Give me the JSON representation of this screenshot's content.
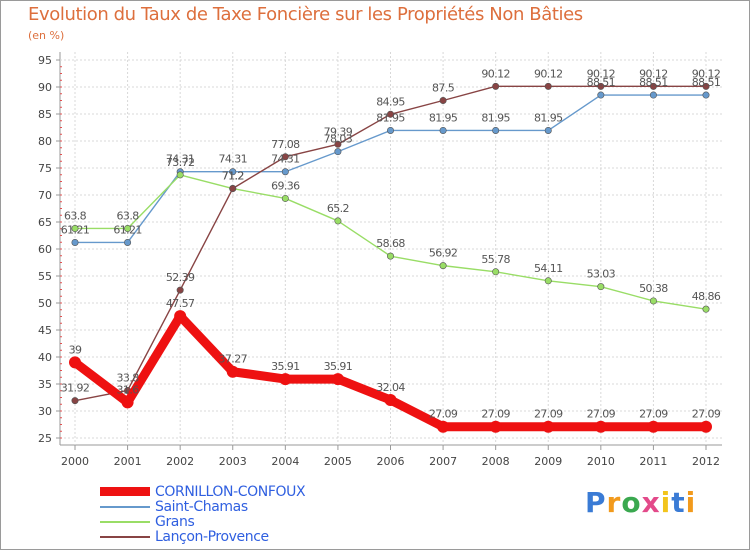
{
  "chart_data": {
    "type": "line",
    "title": "Evolution du Taux de Taxe Foncière sur les Propriétés Non Bâties",
    "ylabel": "(en %)",
    "xlabel": "",
    "ylim": [
      25,
      95
    ],
    "yticks": [
      25,
      30,
      35,
      40,
      45,
      50,
      55,
      60,
      65,
      70,
      75,
      80,
      85,
      90,
      95
    ],
    "grid": true,
    "categories": [
      "2000",
      "2001",
      "2002",
      "2003",
      "2004",
      "2005",
      "2006",
      "2007",
      "2008",
      "2009",
      "2010",
      "2011",
      "2012"
    ],
    "series": [
      {
        "name": "CORNILLON-CONFOUX",
        "color": "#ee1111",
        "values": [
          39,
          31.6,
          47.57,
          37.27,
          35.91,
          35.91,
          32.04,
          27.09,
          27.09,
          27.09,
          27.09,
          27.09,
          27.09
        ],
        "labels": [
          "39",
          "31.6",
          "47.57",
          "37.27",
          "35.91",
          "35.91",
          "32.04",
          "27.09",
          "27.09",
          "27.09",
          "27.09",
          "27.09",
          "27.09"
        ]
      },
      {
        "name": "Saint-Chamas",
        "color": "#6699cc",
        "values": [
          61.21,
          61.21,
          74.31,
          74.31,
          74.31,
          78.03,
          81.95,
          81.95,
          81.95,
          81.95,
          88.51,
          88.51,
          88.51
        ],
        "labels": [
          "61.21",
          "61.21",
          "74.31",
          "74.31",
          "74.31",
          "78.03",
          "81.95",
          "81.95",
          "81.95",
          "81.95",
          "88.51",
          "88.51",
          "88.51"
        ]
      },
      {
        "name": "Grans",
        "color": "#99dd66",
        "values": [
          63.8,
          63.8,
          73.72,
          71.2,
          69.36,
          65.2,
          58.68,
          56.92,
          55.78,
          54.11,
          53.03,
          50.38,
          48.86
        ],
        "labels": [
          "63.8",
          "63.8",
          "73.72",
          "71.2",
          "69.36",
          "65.2",
          "58.68",
          "56.92",
          "55.78",
          "54.11",
          "53.03",
          "50.38",
          "48.86"
        ]
      },
      {
        "name": "Lançon-Provence",
        "color": "#884444",
        "values": [
          31.92,
          33.8,
          52.39,
          71.2,
          77.08,
          79.39,
          84.95,
          87.5,
          90.12,
          90.12,
          90.12,
          90.12,
          90.12
        ],
        "labels": [
          "31.92",
          "33.8",
          "52.39",
          "71.2",
          "77.08",
          "79.39",
          "84.95",
          "87.5",
          "90.12",
          "90.12",
          "90.12",
          "90.12",
          "90.12"
        ]
      }
    ],
    "legend": "bottom-left"
  },
  "logo": {
    "letters": [
      "P",
      "r",
      "o",
      "x",
      "i",
      "t",
      "i"
    ],
    "colors": [
      "#3a7bd5",
      "#f29a1c",
      "#3aa84f",
      "#e34a8a",
      "#f2c41c",
      "#3a7bd5",
      "#f29a1c"
    ]
  }
}
